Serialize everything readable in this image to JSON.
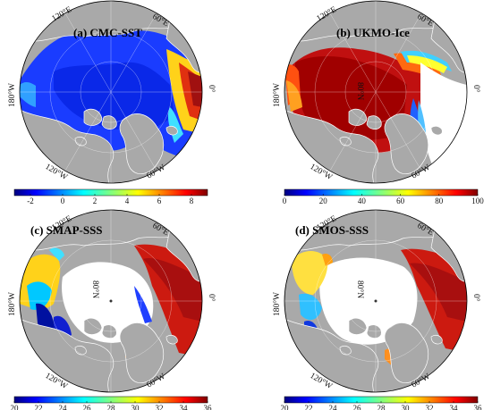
{
  "colors": {
    "land": "#a9a9a9",
    "coast": "#ffffff",
    "graticule": "#ffffff",
    "nodata": "#ffffff",
    "outline": "#000000",
    "colormap": [
      "#000080",
      "#0000ff",
      "#0080ff",
      "#00ffff",
      "#80ff80",
      "#ffff00",
      "#ff8000",
      "#ff0000",
      "#800000"
    ]
  },
  "panels": [
    {
      "id": "a",
      "title": "(a) CMC-SST",
      "lon_labels": {
        "lon120E": "120°E",
        "lon60E": "60°E",
        "lon180W": "180°W",
        "lon0": "0°",
        "lon120W": "120°W",
        "lon60W": "60°W"
      },
      "lat_label": "",
      "colorbar": {
        "min": -3,
        "max": 9,
        "ticks": [
          -2,
          0,
          2,
          4,
          6,
          8
        ],
        "tick_labels": [
          "-2",
          "0",
          "2",
          "4",
          "6",
          "8"
        ]
      }
    },
    {
      "id": "b",
      "title": "(b) UKMO-Ice",
      "lon_labels": {
        "lon120E": "120°E",
        "lon60E": "60°E",
        "lon180W": "180°W",
        "lon0": "0°",
        "lon120W": "120°W",
        "lon60W": "60°W"
      },
      "lat_label": "80°N",
      "colorbar": {
        "min": 0,
        "max": 100,
        "ticks": [
          0,
          20,
          40,
          60,
          80,
          100
        ],
        "tick_labels": [
          "0",
          "20",
          "40",
          "60",
          "80",
          "100"
        ]
      }
    },
    {
      "id": "c",
      "title": "(c) SMAP-SSS",
      "lon_labels": {
        "lon120E": "120°E",
        "lon60E": "60°E",
        "lon180W": "180°W",
        "lon0": "0°",
        "lon120W": "120°W",
        "lon60W": "60°W"
      },
      "lat_label": "80°N",
      "colorbar": {
        "min": 20,
        "max": 36,
        "ticks": [
          20,
          22,
          24,
          26,
          28,
          30,
          32,
          34,
          36
        ],
        "tick_labels": [
          "20",
          "22",
          "24",
          "26",
          "28",
          "30",
          "32",
          "34",
          "36"
        ]
      }
    },
    {
      "id": "d",
      "title": "(d) SMOS-SSS",
      "lon_labels": {
        "lon120E": "120°E",
        "lon60E": "60°E",
        "lon180W": "180°W",
        "lon0": "0°",
        "lon120W": "120°W",
        "lon60W": "60°W"
      },
      "lat_label": "80°N",
      "colorbar": {
        "min": 20,
        "max": 36,
        "ticks": [
          20,
          22,
          24,
          26,
          28,
          30,
          32,
          34,
          36
        ],
        "tick_labels": [
          "20",
          "22",
          "24",
          "26",
          "28",
          "30",
          "32",
          "34",
          "36"
        ]
      }
    }
  ]
}
